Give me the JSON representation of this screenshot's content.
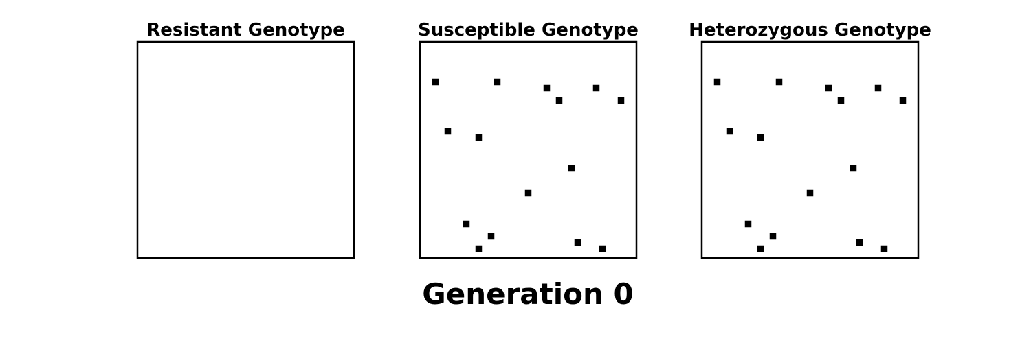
{
  "title": "Generation 0",
  "chart_data": [
    {
      "type": "scatter",
      "title": "Resistant Genotype",
      "grid_size": 35,
      "points": [],
      "xlim": [
        0,
        35
      ],
      "ylim": [
        0,
        35
      ],
      "grid": false,
      "axes_visible": false,
      "marker_color": "#000000"
    },
    {
      "type": "scatter",
      "title": "Susceptible Genotype",
      "grid_size": 35,
      "points": [
        [
          2,
          6
        ],
        [
          12,
          6
        ],
        [
          20,
          7
        ],
        [
          22,
          9
        ],
        [
          28,
          7
        ],
        [
          32,
          9
        ],
        [
          4,
          14
        ],
        [
          9,
          15
        ],
        [
          24,
          20
        ],
        [
          17,
          24
        ],
        [
          7,
          29
        ],
        [
          11,
          31
        ],
        [
          9,
          33
        ],
        [
          25,
          32
        ],
        [
          29,
          33
        ]
      ],
      "xlim": [
        0,
        35
      ],
      "ylim": [
        0,
        35
      ],
      "grid": false,
      "axes_visible": false,
      "marker_color": "#000000"
    },
    {
      "type": "scatter",
      "title": "Heterozygous Genotype",
      "grid_size": 35,
      "points": [
        [
          2,
          6
        ],
        [
          12,
          6
        ],
        [
          20,
          7
        ],
        [
          22,
          9
        ],
        [
          28,
          7
        ],
        [
          32,
          9
        ],
        [
          4,
          14
        ],
        [
          9,
          15
        ],
        [
          24,
          20
        ],
        [
          17,
          24
        ],
        [
          7,
          29
        ],
        [
          11,
          31
        ],
        [
          9,
          33
        ],
        [
          25,
          32
        ],
        [
          29,
          33
        ]
      ],
      "xlim": [
        0,
        35
      ],
      "ylim": [
        0,
        35
      ],
      "grid": false,
      "axes_visible": false,
      "marker_color": "#000000"
    }
  ]
}
